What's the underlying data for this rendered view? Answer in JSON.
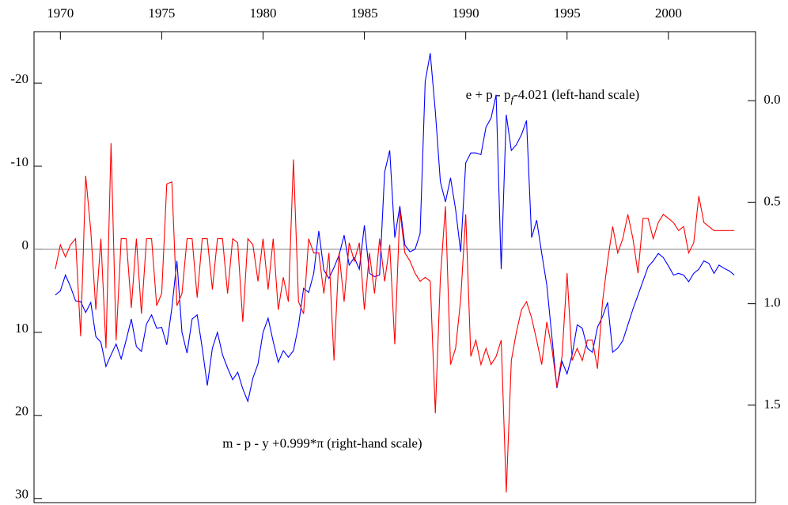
{
  "chart_data": {
    "type": "line",
    "annotations": [
      {
        "parts": [
          "e + p - p",
          "f",
          "-4.021 (left-hand scale)"
        ],
        "x": 1990,
        "y": -18.5
      },
      {
        "parts": [
          "m - p - y +0.999*π (right-hand scale)"
        ],
        "x": 1978,
        "y": 23.5
      }
    ],
    "x": [
      1969.75,
      1970,
      1970.25,
      1970.5,
      1970.75,
      1971,
      1971.25,
      1971.5,
      1971.75,
      1972,
      1972.25,
      1972.5,
      1972.75,
      1973,
      1973.25,
      1973.5,
      1973.75,
      1974,
      1974.25,
      1974.5,
      1974.75,
      1975,
      1975.25,
      1975.5,
      1975.75,
      1976,
      1976.25,
      1976.5,
      1976.75,
      1977,
      1977.25,
      1977.5,
      1977.75,
      1978,
      1978.25,
      1978.5,
      1978.75,
      1979,
      1979.25,
      1979.5,
      1979.75,
      1980,
      1980.25,
      1980.5,
      1980.75,
      1981,
      1981.25,
      1981.5,
      1981.75,
      1982,
      1982.25,
      1982.5,
      1982.75,
      1983,
      1983.25,
      1983.5,
      1983.75,
      1984,
      1984.25,
      1984.5,
      1984.75,
      1985,
      1985.25,
      1985.5,
      1985.75,
      1986,
      1986.25,
      1986.5,
      1986.75,
      1987,
      1987.25,
      1987.5,
      1987.75,
      1988,
      1988.25,
      1988.5,
      1988.75,
      1989,
      1989.25,
      1989.5,
      1989.75,
      1990,
      1990.25,
      1990.5,
      1990.75,
      1991,
      1991.25,
      1991.5,
      1991.75,
      1992,
      1992.25,
      1992.5,
      1992.75,
      1993,
      1993.25,
      1993.5,
      1993.75,
      1994,
      1994.25,
      1994.5,
      1994.75,
      1995,
      1995.25,
      1995.5,
      1995.75,
      1996,
      1996.25,
      1996.5,
      1996.75,
      1997,
      1997.25,
      1997.5,
      1997.75,
      1998,
      1998.25,
      1998.5,
      1998.75,
      1999,
      1999.25,
      1999.5,
      1999.75,
      2000,
      2000.25,
      2000.5,
      2000.75,
      2001,
      2001.25,
      2001.5,
      2001.75,
      2002,
      2002.25,
      2002.5,
      2002.75,
      2003,
      2003.25
    ],
    "series": [
      {
        "color": "#0000ff",
        "axis": "y",
        "values": [
          5.5,
          5.0,
          3.1,
          4.5,
          6.2,
          6.3,
          7.6,
          6.4,
          10.5,
          11.2,
          14.1,
          12.7,
          11.4,
          13.2,
          10.9,
          8.4,
          11.7,
          12.3,
          9.0,
          7.9,
          9.5,
          9.4,
          11.5,
          7.1,
          1.4,
          10.0,
          12.5,
          8.4,
          7.9,
          11.9,
          16.4,
          11.9,
          10.0,
          12.7,
          14.3,
          15.7,
          14.8,
          16.8,
          18.3,
          15.5,
          13.8,
          10.0,
          8.3,
          11.1,
          13.6,
          12.2,
          13.0,
          12.2,
          9.2,
          4.7,
          5.2,
          2.9,
          -2.2,
          2.5,
          3.5,
          2.2,
          0.7,
          -1.7,
          1.9,
          1.0,
          2.4,
          -2.9,
          2.9,
          3.3,
          3.1,
          -9.3,
          -11.9,
          -1.4,
          -5.2,
          -0.5,
          0.3,
          0,
          -1.9,
          -20.2,
          -23.6,
          -16.6,
          -8.1,
          -5.7,
          -8.6,
          -4.8,
          0.3,
          -10.4,
          -11.6,
          -11.6,
          -11.4,
          -14.7,
          -15.8,
          -18.6,
          2.4,
          -16.2,
          -11.9,
          -12.6,
          -13.8,
          -15.5,
          -1.4,
          -3.5,
          0.5,
          4.3,
          10.5,
          16.7,
          13.5,
          15.0,
          12.7,
          9.1,
          9.5,
          11.9,
          12.4,
          9.4,
          8.1,
          6.4,
          12.4,
          11.9,
          11.0,
          9.1,
          7.2,
          5.5,
          3.8,
          2.1,
          1.4,
          0.5,
          1.0,
          2.0,
          3.1,
          2.9,
          3.1,
          3.9,
          2.9,
          2.4,
          1.4,
          1.7,
          2.9,
          1.9,
          2.3,
          2.6,
          3.1
        ]
      },
      {
        "color": "#ff0000",
        "axis": "y2",
        "values": [
          0.83,
          0.71,
          0.77,
          0.71,
          0.68,
          1.16,
          0.37,
          0.64,
          1.03,
          0.68,
          1.22,
          0.21,
          1.18,
          0.68,
          0.68,
          1.02,
          0.68,
          1.05,
          0.68,
          0.68,
          1.01,
          0.95,
          0.41,
          0.4,
          1.01,
          0.95,
          0.68,
          0.68,
          0.97,
          0.68,
          0.68,
          0.93,
          0.68,
          0.68,
          0.95,
          0.68,
          0.7,
          1.09,
          0.68,
          0.71,
          0.89,
          0.68,
          0.93,
          0.68,
          1.03,
          0.87,
          0.99,
          0.29,
          0.99,
          1.05,
          0.68,
          0.75,
          0.75,
          0.95,
          0.75,
          1.28,
          0.75,
          0.99,
          0.7,
          0.79,
          0.7,
          1.03,
          0.75,
          0.95,
          0.68,
          0.89,
          0.71,
          1.2,
          0.54,
          0.75,
          0.79,
          0.85,
          0.89,
          0.87,
          0.89,
          1.54,
          0.87,
          0.52,
          1.3,
          1.22,
          0.98,
          0.56,
          1.26,
          1.18,
          1.3,
          1.22,
          1.3,
          1.26,
          1.18,
          1.93,
          1.28,
          1.14,
          1.03,
          0.99,
          1.07,
          1.18,
          1.3,
          1.09,
          1.22,
          1.41,
          1.26,
          0.85,
          1.28,
          1.22,
          1.28,
          1.18,
          1.18,
          1.32,
          0.99,
          0.79,
          0.62,
          0.75,
          0.68,
          0.56,
          0.68,
          0.85,
          0.58,
          0.58,
          0.68,
          0.6,
          0.56,
          0.58,
          0.6,
          0.64,
          0.62,
          0.75,
          0.7,
          0.47,
          0.6,
          0.62,
          0.64,
          0.64,
          0.64,
          0.64,
          0.64
        ]
      }
    ],
    "xlim": [
      1968.7,
      2004.3
    ],
    "xticks": [
      1970,
      1975,
      1980,
      1985,
      1990,
      1995,
      2000
    ],
    "ylim": [
      -26.2,
      30.5
    ],
    "y_inverted": true,
    "yticks": [
      -20,
      -10,
      0,
      10,
      20,
      30
    ],
    "y2lim": [
      -0.34,
      1.98
    ],
    "y2_inverted": true,
    "y2ticks": [
      {
        "value": 0,
        "label": "0.0"
      },
      0.5,
      {
        "value": 1,
        "label": "1.0"
      },
      1.5
    ],
    "reference_line": 0,
    "reference_color": "#808080"
  }
}
